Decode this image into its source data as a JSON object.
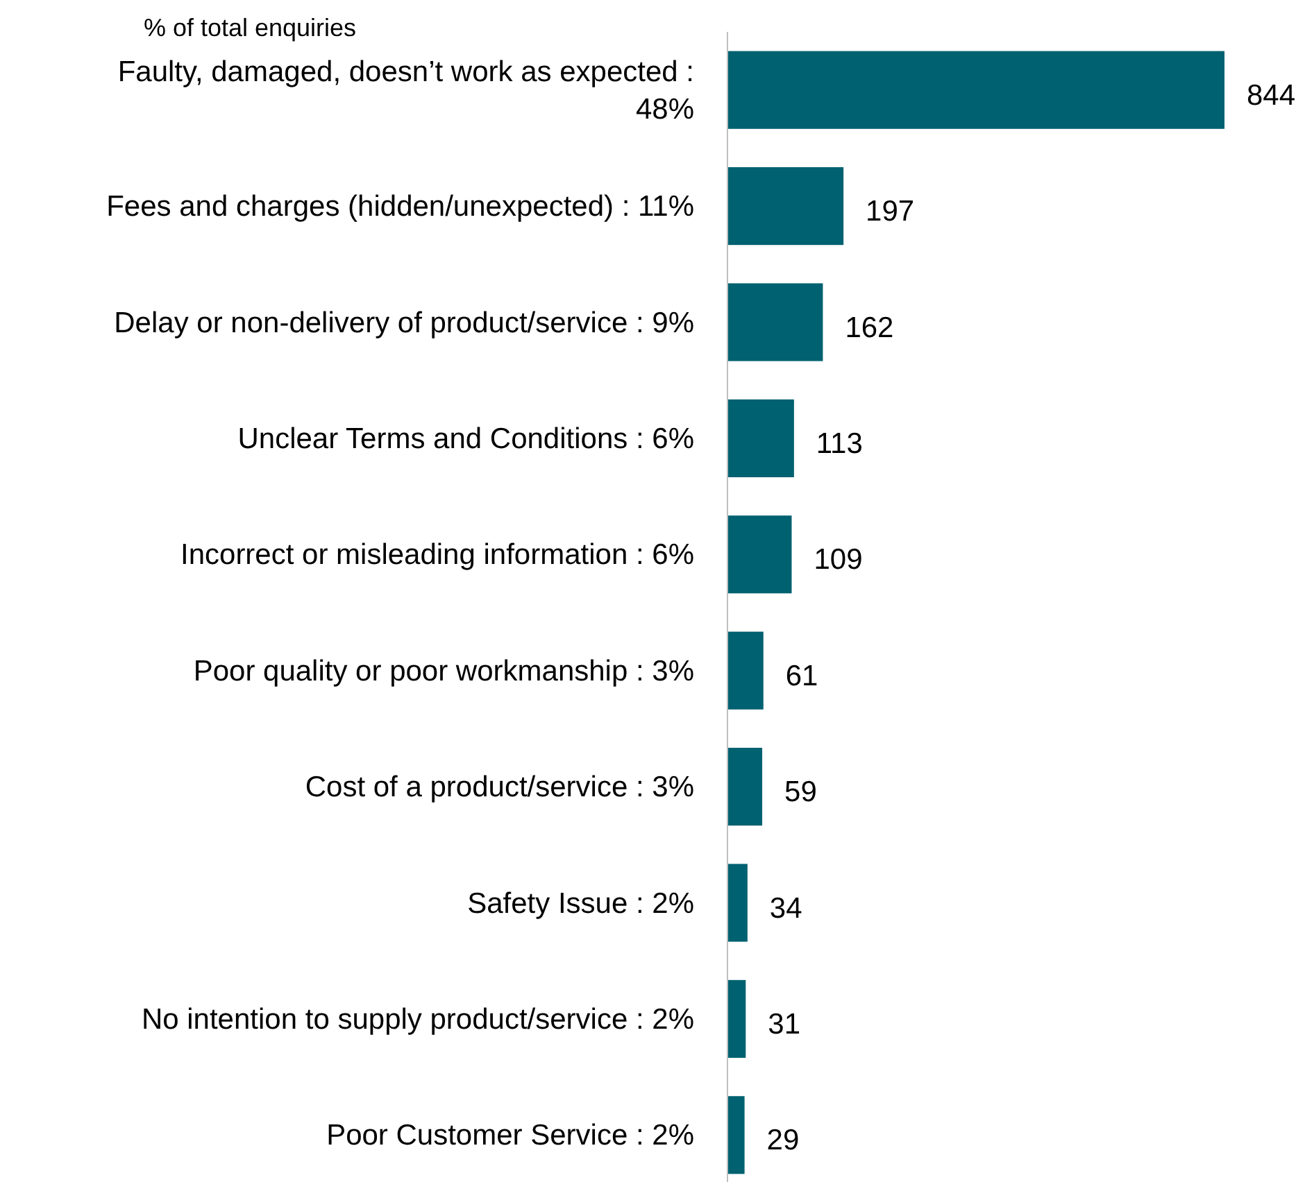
{
  "chart_data": {
    "type": "bar",
    "orientation": "horizontal",
    "title": "% of total enquiries",
    "categories": [
      "Faulty, damaged, doesn’t work as expected : 48%",
      "Fees and charges (hidden/unexpected) : 11%",
      "Delay or non-delivery of product/service : 9%",
      "Unclear Terms and Conditions : 6%",
      "Incorrect or misleading information : 6%",
      "Poor quality or poor workmanship : 3%",
      "Cost of a product/service : 3%",
      "Safety Issue : 2%",
      "No intention to supply product/service : 2%",
      "Poor Customer Service : 2%"
    ],
    "values": [
      844,
      197,
      162,
      113,
      109,
      61,
      59,
      34,
      31,
      29
    ],
    "color": "#006170",
    "data_labels": true
  }
}
